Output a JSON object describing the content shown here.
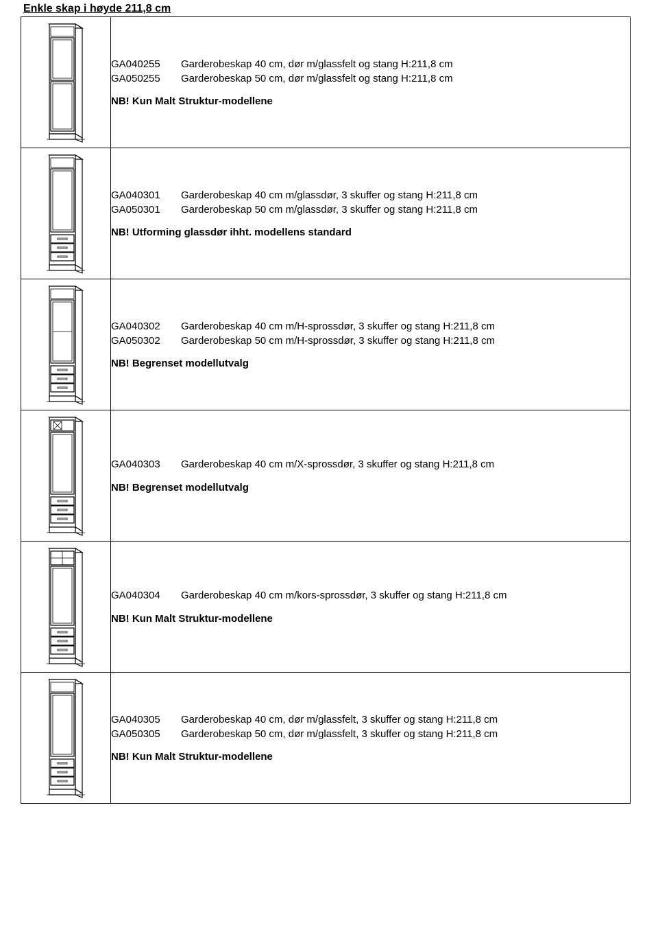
{
  "page_title": "Enkle skap i høyde 211,8 cm",
  "sections": [
    {
      "svg": "type1",
      "items": [
        {
          "code": "GA040255",
          "desc": "Garderobeskap 40 cm, dør m/glassfelt og stang H:211,8 cm"
        },
        {
          "code": "GA050255",
          "desc": "Garderobeskap 50 cm, dør m/glassfelt og stang H:211,8 cm"
        }
      ],
      "note": "NB! Kun Malt Struktur-modellene"
    },
    {
      "svg": "type2",
      "items": [
        {
          "code": "GA040301",
          "desc": "Garderobeskap 40 cm m/glassdør, 3 skuffer og stang H:211,8 cm"
        },
        {
          "code": "GA050301",
          "desc": "Garderobeskap 50 cm m/glassdør, 3 skuffer og stang H:211,8 cm"
        }
      ],
      "note": "NB! Utforming glassdør ihht. modellens standard"
    },
    {
      "svg": "type3",
      "items": [
        {
          "code": "GA040302",
          "desc": "Garderobeskap 40 cm m/H-sprossdør, 3 skuffer og stang H:211,8 cm"
        },
        {
          "code": "GA050302",
          "desc": "Garderobeskap 50 cm m/H-sprossdør, 3 skuffer og stang H:211,8 cm"
        }
      ],
      "note": "NB! Begrenset modellutvalg"
    },
    {
      "svg": "type4",
      "items": [
        {
          "code": "GA040303",
          "desc": "Garderobeskap 40 cm m/X-sprossdør, 3 skuffer og stang H:211,8 cm"
        }
      ],
      "note": "NB! Begrenset modellutvalg"
    },
    {
      "svg": "type5",
      "items": [
        {
          "code": "GA040304",
          "desc": "Garderobeskap 40 cm m/kors-sprossdør, 3 skuffer og stang H:211,8 cm"
        }
      ],
      "note": "NB! Kun Malt Struktur-modellene"
    },
    {
      "svg": "type6",
      "items": [
        {
          "code": "GA040305",
          "desc": "Garderobeskap 40 cm, dør m/glassfelt, 3 skuffer og stang H:211,8 cm"
        },
        {
          "code": "GA050305",
          "desc": "Garderobeskap 50 cm, dør m/glassfelt, 3 skuffer og stang H:211,8 cm"
        }
      ],
      "note": "NB! Kun Malt Struktur-modellene"
    }
  ]
}
